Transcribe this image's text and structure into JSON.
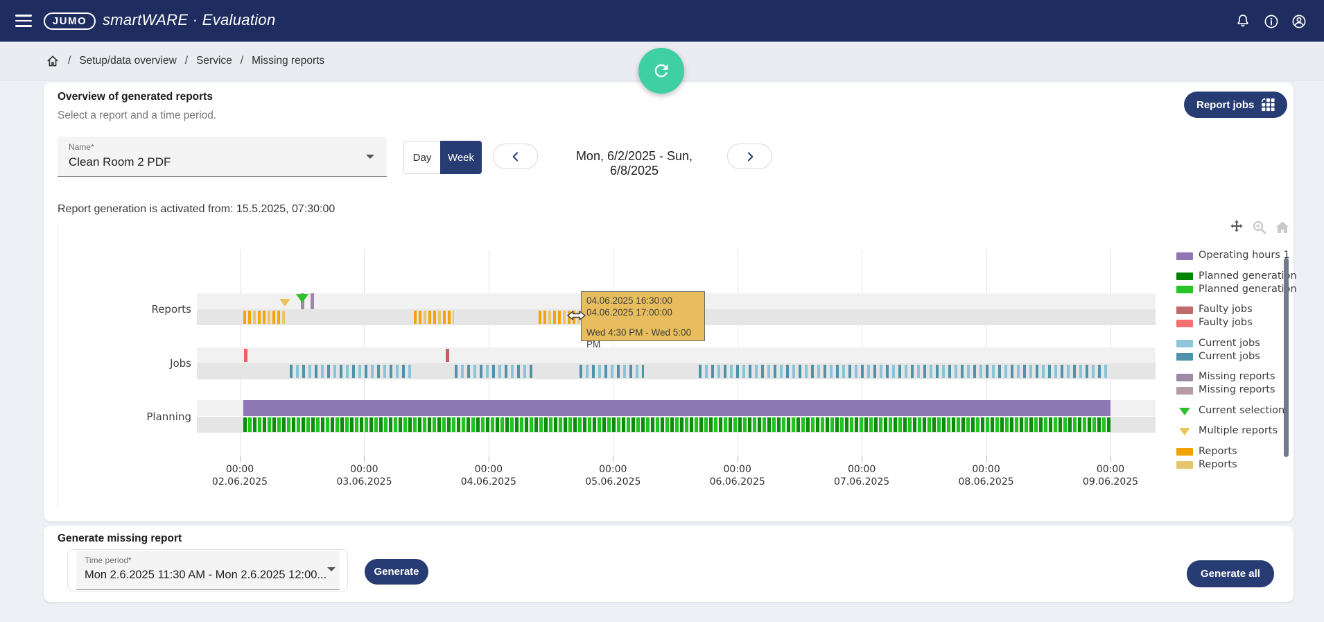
{
  "app_bar": {
    "logo": "JUMO",
    "title": "smartWARE · Evaluation",
    "icons": {
      "menu": "hamburger-icon",
      "notifications": "bell-icon",
      "info": "info-icon",
      "account": "account-icon"
    },
    "colors": {
      "background": "#1e2c5f",
      "foreground": "#ffffff"
    }
  },
  "breadcrumb": {
    "separator": "/",
    "items": [
      "Setup/data overview",
      "Service",
      "Missing reports"
    ]
  },
  "fab": {
    "icon": "refresh-icon",
    "color": "#3ecfa2"
  },
  "overview_card": {
    "title": "Overview of generated reports",
    "subtitle": "Select a report and a time period.",
    "report_jobs_button": "Report jobs",
    "name_select": {
      "label": "Name*",
      "value": "Clean Room 2 PDF"
    },
    "view_toggle": {
      "day": "Day",
      "week": "Week",
      "selected": "Week"
    },
    "date_range": "Mon, 6/2/2025 - Sun, 6/8/2025",
    "activation_note": "Report generation is activated from: 15.5.2025, 07:30:00"
  },
  "chart": {
    "type": "timeline-gantt",
    "toolbar": [
      "pan-icon",
      "box-zoom-icon",
      "reset-home-icon"
    ],
    "axis_start": "02.06.2025 00:00",
    "axis_days": 7,
    "x_ticks": [
      {
        "time": "00:00",
        "date": "02.06.2025"
      },
      {
        "time": "00:00",
        "date": "03.06.2025"
      },
      {
        "time": "00:00",
        "date": "04.06.2025"
      },
      {
        "time": "00:00",
        "date": "05.06.2025"
      },
      {
        "time": "00:00",
        "date": "06.06.2025"
      },
      {
        "time": "00:00",
        "date": "07.06.2025"
      },
      {
        "time": "00:00",
        "date": "08.06.2025"
      },
      {
        "time": "00:00",
        "date": "09.06.2025"
      }
    ],
    "rows": [
      {
        "id": "reports",
        "label": "Reports"
      },
      {
        "id": "jobs",
        "label": "Jobs"
      },
      {
        "id": "planning",
        "label": "Planning"
      }
    ],
    "colors": {
      "operating": "#8d78b5",
      "planned_dark": "#0b8c0b",
      "planned_bright": "#1fc41f",
      "faulty_dark": "#c25f5f",
      "faulty_bright": "#f25f5f",
      "jobs_dark": "#4f93aa",
      "jobs_light": "#8ac4d8",
      "missing": "#9d8aa5",
      "reports_dark": "#f2a40a",
      "reports_light": "#e9c66c",
      "selection_marker": "#2fbf2f",
      "multiple_marker": "#ecc35c"
    },
    "segments": [
      {
        "row": "reports",
        "lane": 2,
        "start": 0.03,
        "end": 0.38,
        "style": "reports"
      },
      {
        "row": "reports",
        "lane": 2,
        "start": 1.4,
        "end": 1.72,
        "style": "reports"
      },
      {
        "row": "reports",
        "lane": 2,
        "start": 2.4,
        "end": 2.73,
        "style": "reports"
      },
      {
        "row": "reports",
        "lane": 1,
        "start": 0.493,
        "end": 0.521,
        "style": "missing"
      },
      {
        "row": "reports",
        "lane": 1,
        "start": 0.57,
        "end": 0.598,
        "style": "missing"
      },
      {
        "row": "jobs",
        "lane": 1,
        "start": 0.035,
        "end": 0.063,
        "style": "faulty_bright"
      },
      {
        "row": "jobs",
        "lane": 1,
        "start": 1.655,
        "end": 1.683,
        "style": "faulty_dark"
      },
      {
        "row": "jobs",
        "lane": 2,
        "start": 0.4,
        "end": 1.38,
        "style": "jobs"
      },
      {
        "row": "jobs",
        "lane": 2,
        "start": 1.73,
        "end": 2.36,
        "style": "jobs"
      },
      {
        "row": "jobs",
        "lane": 2,
        "start": 2.73,
        "end": 3.25,
        "style": "jobs"
      },
      {
        "row": "jobs",
        "lane": 2,
        "start": 3.69,
        "end": 7.0,
        "style": "jobs"
      },
      {
        "row": "planning",
        "lane": 1,
        "start": 0.027,
        "end": 7.0,
        "style": "operating"
      },
      {
        "row": "planning",
        "lane": 2,
        "start": 0.027,
        "end": 7.0,
        "style": "planned"
      }
    ],
    "markers": [
      {
        "row": "reports",
        "t": 0.365,
        "type": "multiple_reports"
      },
      {
        "row": "reports",
        "t": 0.502,
        "type": "current_selection"
      }
    ],
    "legend": [
      [
        {
          "kind": "swatch",
          "color": "#8d78b5",
          "label": "Operating hours 1"
        }
      ],
      [
        {
          "kind": "swatch",
          "color": "#008400",
          "label": "Planned generation"
        },
        {
          "kind": "swatch",
          "color": "#28c428",
          "label": "Planned generation"
        }
      ],
      [
        {
          "kind": "swatch",
          "color": "#c06a6a",
          "label": "Faulty jobs"
        },
        {
          "kind": "swatch",
          "color": "#f57070",
          "label": "Faulty jobs"
        }
      ],
      [
        {
          "kind": "swatch",
          "color": "#8ec7d9",
          "label": "Current jobs"
        },
        {
          "kind": "swatch",
          "color": "#4f93aa",
          "label": "Current jobs"
        }
      ],
      [
        {
          "kind": "swatch",
          "color": "#9d8aa5",
          "label": "Missing reports"
        },
        {
          "kind": "swatch",
          "color": "#b79ba4",
          "label": "Missing reports"
        }
      ],
      [
        {
          "kind": "triangle",
          "color": "#2fbf2f",
          "label": "Current selection"
        }
      ],
      [
        {
          "kind": "triangle",
          "color": "#ecc35c",
          "label": "Multiple reports"
        }
      ],
      [
        {
          "kind": "swatch",
          "color": "#f0a200",
          "label": "Reports"
        },
        {
          "kind": "swatch",
          "color": "#e6c56f",
          "label": "Reports"
        }
      ]
    ]
  },
  "tooltip": {
    "line1": "04.06.2025 16:30:00",
    "line2": "04.06.2025 17:00:00",
    "range": "Wed 4:30 PM - Wed 5:00 PM",
    "background": "#e7bd5e"
  },
  "generate_card": {
    "title": "Generate missing report",
    "time_period_select": {
      "label": "Time period*",
      "value": "Mon 2.6.2025 11:30 AM - Mon 2.6.2025 12:00..."
    },
    "generate_button": "Generate",
    "generate_all_button": "Generate all"
  }
}
